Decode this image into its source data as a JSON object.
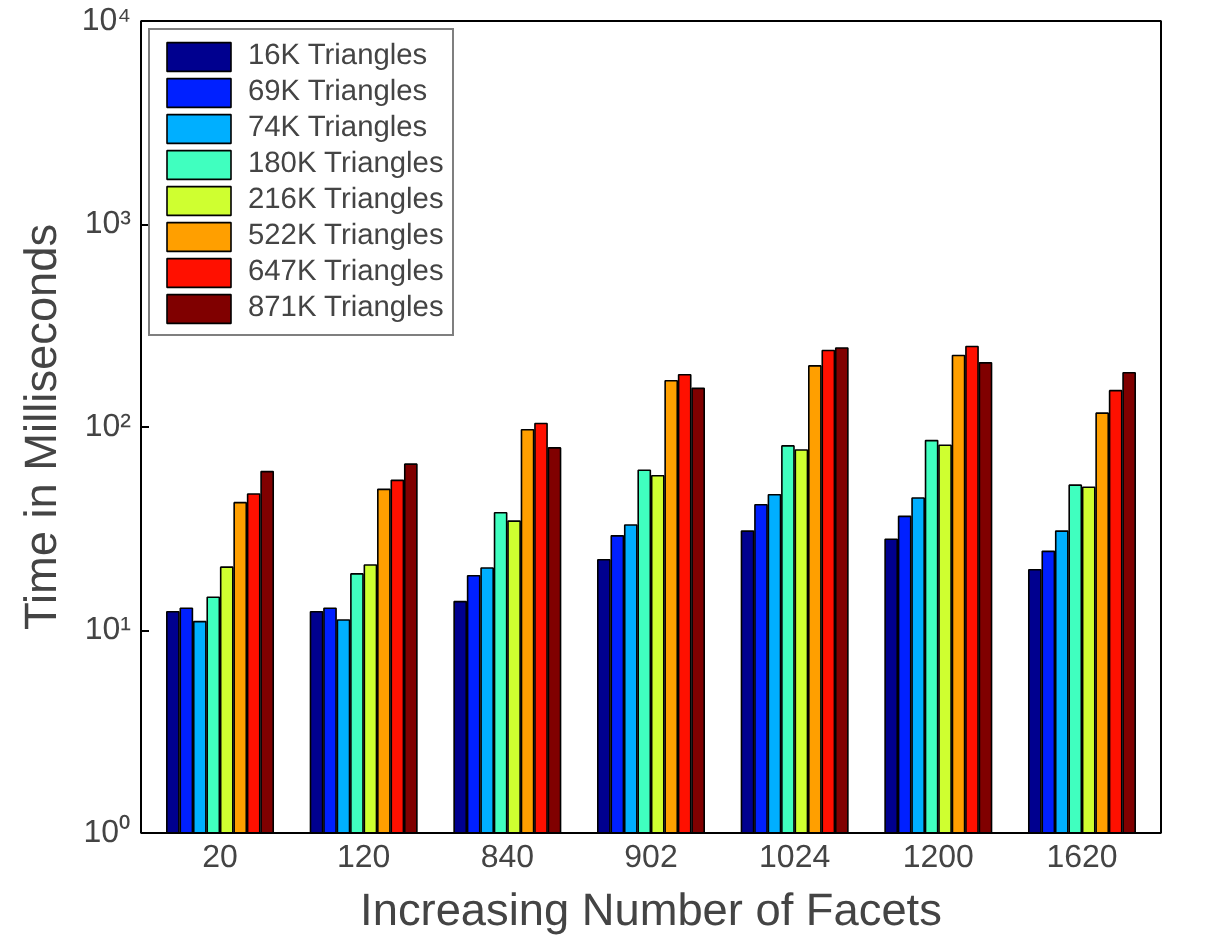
{
  "chart_data": {
    "type": "bar",
    "xlabel": "Increasing Number of Facets",
    "ylabel": "Time in Milliseconds",
    "categories": [
      "20",
      "120",
      "840",
      "902",
      "1024",
      "1200",
      "1620"
    ],
    "series": [
      {
        "name": "16K Triangles",
        "color": "#00008f",
        "values": [
          12.3,
          12.3,
          13.8,
          22.2,
          30.7,
          28,
          19.8
        ]
      },
      {
        "name": "69K Triangles",
        "color": "#0020ff",
        "values": [
          12.8,
          12.8,
          18.5,
          29.1,
          41.4,
          36.3,
          24.4
        ]
      },
      {
        "name": "74K Triangles",
        "color": "#00afff",
        "values": [
          11,
          11.2,
          20.2,
          32.9,
          46.4,
          44.7,
          30.7
        ]
      },
      {
        "name": "180K Triangles",
        "color": "#40ffbf",
        "values": [
          14.5,
          18.9,
          37.8,
          61.2,
          80.7,
          85.7,
          51.7
        ]
      },
      {
        "name": "216K Triangles",
        "color": "#cfff30",
        "values": [
          20.4,
          20.9,
          34.4,
          57.5,
          77.1,
          81.3,
          50.5
        ]
      },
      {
        "name": "522K Triangles",
        "color": "#ff9f00",
        "values": [
          42.4,
          49.3,
          97,
          169,
          200,
          225,
          117
        ]
      },
      {
        "name": "647K Triangles",
        "color": "#ff1000",
        "values": [
          46.8,
          54.6,
          104,
          181,
          238,
          249,
          151
        ]
      },
      {
        "name": "871K Triangles",
        "color": "#800000",
        "values": [
          60.3,
          65.6,
          78.9,
          155,
          245,
          207,
          185
        ]
      }
    ],
    "log": true,
    "ylim": [
      1,
      10000
    ],
    "yticks": [
      {
        "value": 1,
        "label": "10⁰"
      },
      {
        "value": 10,
        "label": "10¹"
      },
      {
        "value": 100,
        "label": "10²"
      },
      {
        "value": 1000,
        "label": "10³"
      },
      {
        "value": 10000,
        "label": "10⁴"
      }
    ],
    "grid": false,
    "legend": "top left"
  }
}
